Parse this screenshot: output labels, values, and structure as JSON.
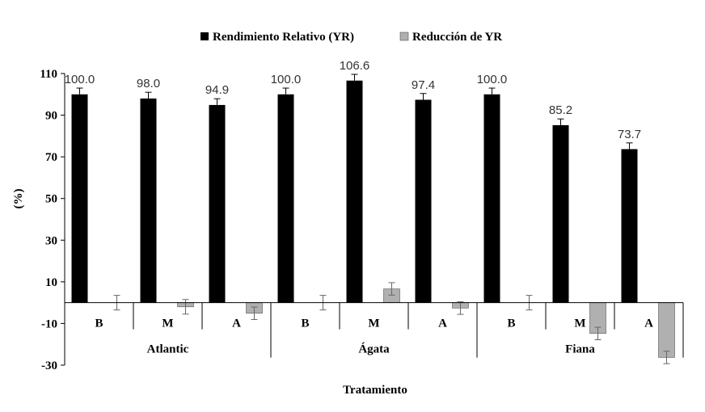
{
  "chart_data": {
    "type": "bar",
    "ylabel": "(%)",
    "xlabel": "Tratamiento",
    "ylim": [
      -30,
      110
    ],
    "yticks": [
      -30,
      -10,
      10,
      30,
      50,
      70,
      90,
      110
    ],
    "groups": [
      {
        "name": "Atlantic",
        "categories": [
          "B",
          "M",
          "A"
        ]
      },
      {
        "name": "Ágata",
        "categories": [
          "B",
          "M",
          "A"
        ]
      },
      {
        "name": "Fiana",
        "categories": [
          "B",
          "M",
          "A"
        ]
      }
    ],
    "series": [
      {
        "name": "Rendimiento Relativo (YR)",
        "color": "#000000",
        "values": [
          100.0,
          98.0,
          94.9,
          100.0,
          106.6,
          97.4,
          100.0,
          85.2,
          73.7
        ],
        "labels": [
          "100.0",
          "98.0",
          "94.9",
          "100.0",
          "106.6",
          "97.4",
          "100.0",
          "85.2",
          "73.7"
        ],
        "errors": [
          3,
          3,
          3,
          3,
          3,
          3,
          3,
          3,
          3
        ]
      },
      {
        "name": "Reducción de YR",
        "color": "#b0b0b0",
        "values": [
          0.0,
          -2.0,
          -5.1,
          0.0,
          6.6,
          -2.6,
          0.0,
          -14.8,
          -26.3
        ],
        "errors": [
          3.5,
          3.5,
          3.0,
          3.5,
          3.0,
          3.0,
          3.5,
          3.0,
          3.0
        ]
      }
    ],
    "legend_position": "top-center",
    "grid": false
  }
}
